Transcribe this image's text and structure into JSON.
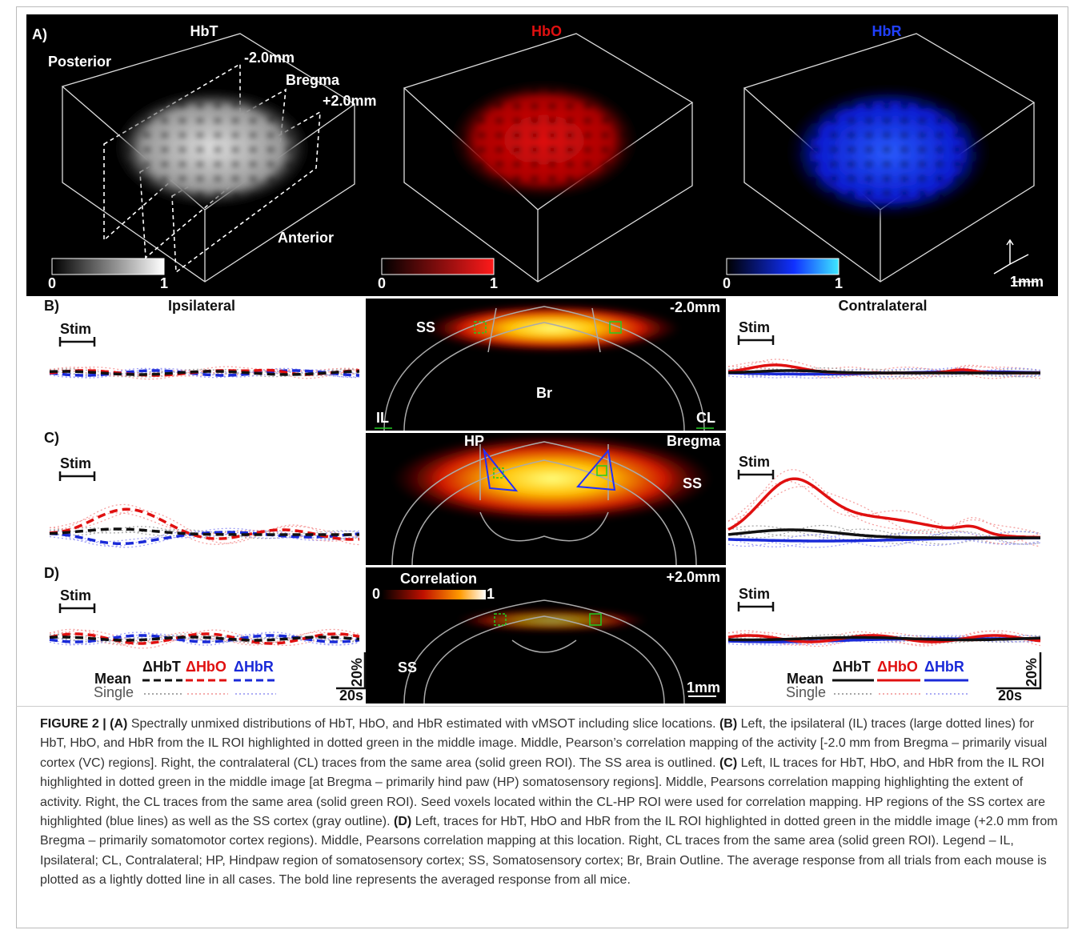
{
  "panel_a": {
    "label": "A)",
    "titles": [
      "HbT",
      "HbO",
      "HbR"
    ],
    "posterior": "Posterior",
    "slices": [
      "-2.0mm",
      "Bregma",
      "+2.0mm"
    ],
    "anterior": "Anterior",
    "colorbars": [
      {
        "min": "0",
        "max": "1"
      },
      {
        "min": "0",
        "max": "1"
      },
      {
        "min": "0",
        "max": "1"
      }
    ],
    "scale": "1mm"
  },
  "rows": [
    {
      "label": "B)",
      "left_title": "Ipsilateral",
      "right_title": "Contralateral",
      "stim_left": "Stim",
      "stim_right": "Stim",
      "image": {
        "slice": "-2.0mm",
        "labels": [
          "SS",
          "Br",
          "IL",
          "CL"
        ]
      }
    },
    {
      "label": "C)",
      "stim_left": "Stim",
      "stim_right": "Stim",
      "image": {
        "slice": "Bregma",
        "labels": [
          "HP",
          "SS"
        ]
      }
    },
    {
      "label": "D)",
      "stim_left": "Stim",
      "stim_right": "Stim",
      "image": {
        "slice": "+2.0mm",
        "colorbar_title": "Correlation",
        "colorbar_min": "0",
        "colorbar_max": "1",
        "labels": [
          "SS"
        ],
        "scale": "1mm"
      }
    }
  ],
  "legends": [
    {
      "mean": "Mean",
      "items": [
        "ΔHbT",
        "ΔHbO",
        "ΔHbR"
      ],
      "single": "Single",
      "y_scale": "20%",
      "x_scale": "20s"
    },
    {
      "mean": "Mean",
      "items": [
        "ΔHbT",
        "ΔHbO",
        "ΔHbR"
      ],
      "single": "Single",
      "y_scale": "20%",
      "x_scale": "20s"
    }
  ],
  "caption": {
    "runs": [
      "FIGURE 2 | (A)",
      "Spectrally unmixed distributions of HbT, HbO, and HbR estimated with vMSOT including slice locations.",
      "(B)",
      "Left, the ipsilateral (IL) traces (large dotted lines) for HbT, HbO, and HbR from the IL ROI highlighted in dotted green in the middle image. Middle, Pearson’s correlation mapping of the activity [-2.0 mm from Bregma – primarily visual cortex (VC) regions]. Right, the contralateral (CL) traces from the same area (solid green ROI). The SS area is outlined.",
      "(C)",
      "Left, IL traces for HbT, HbO, and HbR from the IL ROI highlighted in dotted green in the middle image [at Bregma – primarily hind paw (HP) somatosensory regions]. Middle, Pearsons correlation mapping highlighting the extent of activity. Right, the CL traces from the same area (solid green ROI). Seed voxels located within the CL-HP ROI were used for correlation mapping. HP regions of the SS cortex are highlighted (blue lines) as well as the SS cortex (gray outline).",
      "(D)",
      "Left, traces for HbT, HbO and HbR from the IL ROI highlighted in dotted green in the middle image (+2.0 mm from Bregma – primarily somatomotor cortex regions). Middle, Pearsons correlation mapping at this location. Right, CL traces from the same area (solid green ROI). Legend – IL, Ipsilateral; CL, Contralateral; HP, Hindpaw region of somatosensory cortex; SS, Somatosensory cortex; Br, Brain Outline. The average response from all trials from each mouse is plotted as a lightly dotted line in all cases. The bold line represents the averaged response from all mice."
    ]
  }
}
